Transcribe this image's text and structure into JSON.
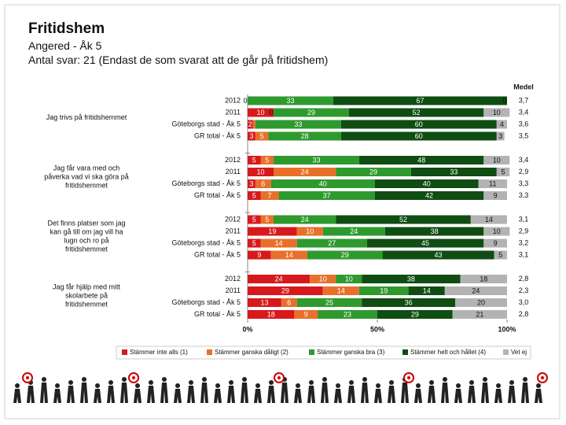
{
  "chart_data": {
    "type": "bar",
    "orientation": "horizontal",
    "stacked": true,
    "title": "Fritidshem",
    "subtitle": "Angered - Åk 5",
    "note": "Antal svar: 21 (Endast de som svarat att de går på fritidshem)",
    "group_labels": [
      "Jag trivs på fritidshemmet",
      "Jag får vara med och påverka vad vi ska göra på fritidshemmet",
      "Det finns platser som jag kan gå till om jag vill ha lugn och ro på fritidshemmet",
      "Jag får hjälp med mitt skolarbete på fritidshemmet"
    ],
    "categories": [
      "2012",
      "2011",
      "Göteborgs stad - Åk 5",
      "GR total - Åk 5",
      "2012",
      "2011",
      "Göteborgs stad - Åk 5",
      "GR total - Åk 5",
      "2012",
      "2011",
      "Göteborgs stad - Åk 5",
      "GR total - Åk 5",
      "2012",
      "2011",
      "Göteborgs stad - Åk 5",
      "GR total - Åk 5"
    ],
    "series": [
      {
        "name": "Stämmer inte alls (1)",
        "color": "#d7191c",
        "values": [
          0,
          10,
          2,
          3,
          5,
          10,
          3,
          5,
          5,
          19,
          5,
          9,
          24,
          29,
          13,
          18
        ]
      },
      {
        "name": "Stämmer ganska dåligt (2)",
        "color": "#e8702a",
        "values": [
          0,
          0,
          1,
          5,
          5,
          24,
          6,
          7,
          5,
          10,
          14,
          14,
          10,
          14,
          6,
          9
        ]
      },
      {
        "name": "Stämmer ganska bra (3)",
        "color": "#2e9a2e",
        "values": [
          33,
          29,
          33,
          28,
          33,
          29,
          40,
          37,
          24,
          24,
          27,
          29,
          10,
          19,
          25,
          23
        ]
      },
      {
        "name": "Stämmer helt och hållet (4)",
        "color": "#0f4d12",
        "values": [
          67,
          52,
          60,
          60,
          48,
          33,
          40,
          42,
          52,
          38,
          45,
          43,
          38,
          14,
          36,
          29
        ]
      },
      {
        "name": "Vet ej",
        "color": "#b3b3b3",
        "values": [
          0,
          10,
          4,
          3,
          10,
          5,
          11,
          9,
          14,
          10,
          9,
          5,
          18,
          24,
          20,
          21
        ]
      }
    ],
    "mean_title": "Medel",
    "means": [
      3.7,
      3.4,
      3.6,
      3.5,
      3.4,
      2.9,
      3.3,
      3.3,
      3.1,
      2.9,
      3.2,
      3.1,
      2.8,
      2.3,
      3.0,
      2.8
    ],
    "mean_labels": [
      "3,7",
      "3,4",
      "3,6",
      "3,5",
      "3,4",
      "2,9",
      "3,3",
      "3,3",
      "3,1",
      "2,9",
      "3,2",
      "3,1",
      "2,8",
      "2,3",
      "3,0",
      "2,8"
    ],
    "xlim": [
      0,
      100
    ],
    "xticks": [
      {
        "value": 0,
        "label": "0%"
      },
      {
        "value": 50,
        "label": "50%"
      },
      {
        "value": 100,
        "label": "100%"
      }
    ]
  }
}
